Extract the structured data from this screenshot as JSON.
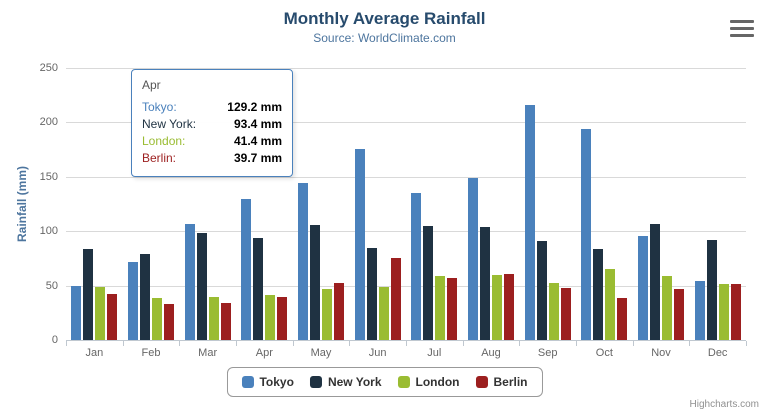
{
  "title": "Monthly Average Rainfall",
  "subtitle": "Source: WorldClimate.com",
  "y_axis_title": "Rainfall (mm)",
  "credits": "Highcharts.com",
  "menu_icon": "hamburger-icon",
  "chart_data": {
    "type": "bar",
    "title": "Monthly Average Rainfall",
    "subtitle": "Source: WorldClimate.com",
    "xlabel": "",
    "ylabel": "Rainfall (mm)",
    "ylim": [
      0,
      250
    ],
    "ytick_interval": 50,
    "grid": true,
    "legend_position": "bottom",
    "categories": [
      "Jan",
      "Feb",
      "Mar",
      "Apr",
      "May",
      "Jun",
      "Jul",
      "Aug",
      "Sep",
      "Oct",
      "Nov",
      "Dec"
    ],
    "series": [
      {
        "name": "Tokyo",
        "color": "#4a81bc",
        "values": [
          49.9,
          71.5,
          106.4,
          129.2,
          144.0,
          176.0,
          135.6,
          148.5,
          216.4,
          194.1,
          95.6,
          54.4
        ]
      },
      {
        "name": "New York",
        "color": "#1f3242",
        "values": [
          83.6,
          78.8,
          98.5,
          93.4,
          106.0,
          84.5,
          105.0,
          104.3,
          91.2,
          83.5,
          106.6,
          92.3
        ]
      },
      {
        "name": "London",
        "color": "#9abc32",
        "values": [
          48.9,
          38.8,
          39.3,
          41.4,
          47.0,
          48.3,
          59.0,
          59.6,
          52.4,
          65.2,
          59.3,
          51.2
        ]
      },
      {
        "name": "Berlin",
        "color": "#9c1f1f",
        "values": [
          42.4,
          33.2,
          34.5,
          39.7,
          52.6,
          75.5,
          57.4,
          60.4,
          47.6,
          39.1,
          46.8,
          51.1
        ]
      }
    ]
  },
  "tooltip": {
    "header": "Apr",
    "rows": [
      {
        "name": "Tokyo:",
        "value": "129.2 mm",
        "color": "#4a81bc"
      },
      {
        "name": "New York:",
        "value": "93.4 mm",
        "color": "#1f3242"
      },
      {
        "name": "London:",
        "value": "41.4 mm",
        "color": "#9abc32"
      },
      {
        "name": "Berlin:",
        "value": "39.7 mm",
        "color": "#9c1f1f"
      }
    ]
  }
}
